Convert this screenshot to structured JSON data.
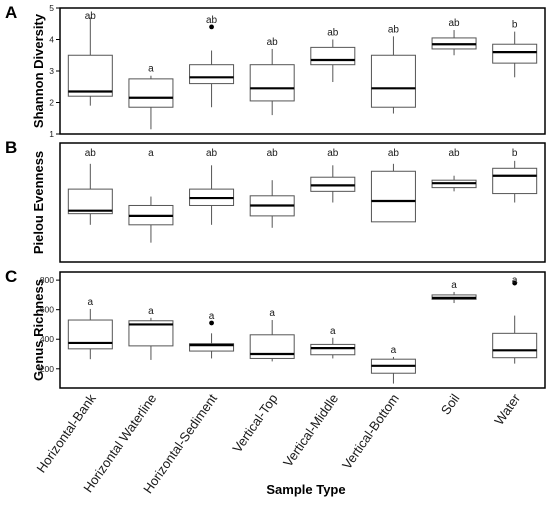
{
  "chart_data": [
    {
      "type": "box",
      "panel_label": "A",
      "ylabel": "Shannon Diversity",
      "ylim": [
        1,
        5
      ],
      "yticks": [
        1,
        2,
        3,
        4,
        5
      ],
      "categories": [
        "Horizontal-Bank",
        "Horizontal Waterline",
        "Horizontal-Sediment",
        "Vertical-Top",
        "Vertical-Middle",
        "Vertical-Bottom",
        "Soil",
        "Water"
      ],
      "boxes": [
        {
          "whisker_low": 1.9,
          "q1": 2.2,
          "median": 2.35,
          "q3": 3.5,
          "whisker_high": 4.7,
          "outliers": []
        },
        {
          "whisker_low": 1.15,
          "q1": 1.85,
          "median": 2.15,
          "q3": 2.75,
          "whisker_high": 2.85,
          "outliers": []
        },
        {
          "whisker_low": 1.85,
          "q1": 2.6,
          "median": 2.8,
          "q3": 3.2,
          "whisker_high": 3.65,
          "outliers": [
            4.4
          ]
        },
        {
          "whisker_low": 1.6,
          "q1": 2.05,
          "median": 2.45,
          "q3": 3.2,
          "whisker_high": 3.7,
          "outliers": []
        },
        {
          "whisker_low": 2.65,
          "q1": 3.2,
          "median": 3.35,
          "q3": 3.75,
          "whisker_high": 4.0,
          "outliers": []
        },
        {
          "whisker_low": 1.65,
          "q1": 1.85,
          "median": 2.45,
          "q3": 3.5,
          "whisker_high": 4.1,
          "outliers": []
        },
        {
          "whisker_low": 3.5,
          "q1": 3.7,
          "median": 3.85,
          "q3": 4.05,
          "whisker_high": 4.3,
          "outliers": []
        },
        {
          "whisker_low": 2.8,
          "q1": 3.25,
          "median": 3.6,
          "q3": 3.85,
          "whisker_high": 4.25,
          "outliers": []
        }
      ],
      "letters": [
        "ab",
        "a",
        "ab",
        "ab",
        "ab",
        "ab",
        "ab",
        "b"
      ]
    },
    {
      "type": "box",
      "panel_label": "B",
      "ylabel": "Pielou Evenness",
      "categories": [
        "Horizontal-Bank",
        "Horizontal Waterline",
        "Horizontal-Sediment",
        "Vertical-Top",
        "Vertical-Middle",
        "Vertical-Bottom",
        "Soil",
        "Water"
      ],
      "boxes": [
        {
          "whisker_low": 0.31,
          "q1": 0.385,
          "median": 0.405,
          "q3": 0.55,
          "whisker_high": 0.72,
          "outliers": []
        },
        {
          "whisker_low": 0.19,
          "q1": 0.31,
          "median": 0.37,
          "q3": 0.44,
          "whisker_high": 0.5,
          "outliers": []
        },
        {
          "whisker_low": 0.31,
          "q1": 0.44,
          "median": 0.49,
          "q3": 0.55,
          "whisker_high": 0.71,
          "outliers": []
        },
        {
          "whisker_low": 0.29,
          "q1": 0.37,
          "median": 0.44,
          "q3": 0.505,
          "whisker_high": 0.61,
          "outliers": []
        },
        {
          "whisker_low": 0.46,
          "q1": 0.535,
          "median": 0.575,
          "q3": 0.63,
          "whisker_high": 0.71,
          "outliers": []
        },
        {
          "whisker_low": 0.33,
          "q1": 0.33,
          "median": 0.47,
          "q3": 0.67,
          "whisker_high": 0.72,
          "outliers": []
        },
        {
          "whisker_low": 0.535,
          "q1": 0.56,
          "median": 0.59,
          "q3": 0.61,
          "whisker_high": 0.64,
          "outliers": []
        },
        {
          "whisker_low": 0.46,
          "q1": 0.52,
          "median": 0.64,
          "q3": 0.69,
          "whisker_high": 0.74,
          "outliers": []
        }
      ],
      "letters": [
        "ab",
        "a",
        "ab",
        "ab",
        "ab",
        "ab",
        "ab",
        "b"
      ]
    },
    {
      "type": "box",
      "panel_label": "C",
      "ylabel": "Genus Richness",
      "ylim": [
        100,
        850
      ],
      "yticks": [
        200,
        400,
        600,
        800
      ],
      "categories": [
        "Horizontal-Bank",
        "Horizontal Waterline",
        "Horizontal-Sediment",
        "Vertical-Top",
        "Vertical-Middle",
        "Vertical-Bottom",
        "Soil",
        "Water"
      ],
      "boxes": [
        {
          "whisker_low": 265,
          "q1": 335,
          "median": 375,
          "q3": 530,
          "whisker_high": 605,
          "outliers": []
        },
        {
          "whisker_low": 260,
          "q1": 355,
          "median": 500,
          "q3": 525,
          "whisker_high": 545,
          "outliers": []
        },
        {
          "whisker_low": 270,
          "q1": 320,
          "median": 360,
          "q3": 370,
          "whisker_high": 440,
          "outliers": [
            510
          ]
        },
        {
          "whisker_low": 250,
          "q1": 270,
          "median": 300,
          "q3": 430,
          "whisker_high": 530,
          "outliers": []
        },
        {
          "whisker_low": 270,
          "q1": 295,
          "median": 340,
          "q3": 365,
          "whisker_high": 410,
          "outliers": []
        },
        {
          "whisker_low": 100,
          "q1": 170,
          "median": 220,
          "q3": 265,
          "whisker_high": 280,
          "outliers": []
        },
        {
          "whisker_low": 645,
          "q1": 670,
          "median": 680,
          "q3": 700,
          "whisker_high": 720,
          "outliers": []
        },
        {
          "whisker_low": 235,
          "q1": 275,
          "median": 325,
          "q3": 440,
          "whisker_high": 560,
          "outliers": [
            780
          ]
        }
      ],
      "letters": [
        "a",
        "a",
        "a",
        "a",
        "a",
        "a",
        "a",
        "a"
      ]
    }
  ],
  "xlabel": "Sample Type",
  "colors": {
    "axis": "#000000",
    "box_stroke": "#555555",
    "median": "#000000",
    "text": "#1a1a1a"
  }
}
